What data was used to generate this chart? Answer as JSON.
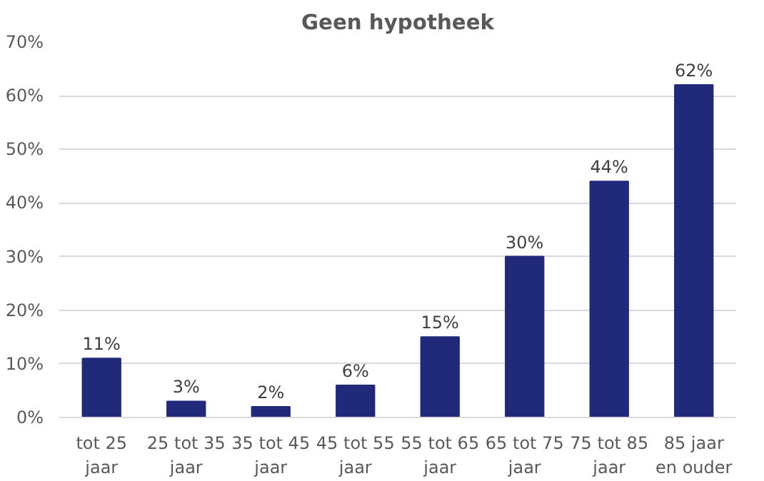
{
  "chart_data": {
    "type": "bar",
    "title": "Geen hypotheek",
    "categories": [
      "tot 25\njaar",
      "25 tot 35\njaar",
      "35 tot 45\njaar",
      "45 tot 55\njaar",
      "55 tot 65\njaar",
      "65 tot 75\njaar",
      "75 tot 85\njaar",
      "85 jaar\nen ouder"
    ],
    "values": [
      11,
      3,
      2,
      6,
      15,
      30,
      44,
      62
    ],
    "value_labels": [
      "11%",
      "3%",
      "2%",
      "6%",
      "15%",
      "30%",
      "44%",
      "62%"
    ],
    "color": "#21297a",
    "ylim": [
      0,
      70
    ],
    "yticks": [
      {
        "value": 0,
        "label": "0%"
      },
      {
        "value": 10,
        "label": "10%"
      },
      {
        "value": 20,
        "label": "20%"
      },
      {
        "value": 30,
        "label": "30%"
      },
      {
        "value": 40,
        "label": "40%"
      },
      {
        "value": 50,
        "label": "50%"
      },
      {
        "value": 60,
        "label": "60%"
      },
      {
        "value": 70,
        "label": "70%"
      }
    ],
    "grid": "y"
  }
}
